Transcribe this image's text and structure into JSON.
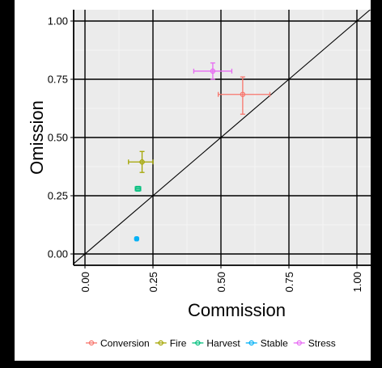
{
  "chart_data": {
    "type": "scatter",
    "title": "",
    "xlabel": "Commission",
    "ylabel": "Omission",
    "xlim": [
      0,
      1
    ],
    "ylim": [
      0,
      1
    ],
    "x_ticks": [
      "0.00",
      "0.25",
      "0.50",
      "0.75",
      "1.00"
    ],
    "y_ticks": [
      "0.00",
      "0.25",
      "0.50",
      "0.75",
      "1.00"
    ],
    "grid": true,
    "reference_line": "y = x",
    "legend_position": "bottom",
    "series": [
      {
        "name": "Conversion",
        "color": "#f8766d",
        "x": 0.58,
        "y": 0.685,
        "x_err": [
          0.49,
          0.68
        ],
        "y_err": [
          0.6,
          0.76
        ]
      },
      {
        "name": "Fire",
        "color": "#a3a500",
        "x": 0.21,
        "y": 0.395,
        "x_err": [
          0.16,
          0.25
        ],
        "y_err": [
          0.35,
          0.44
        ]
      },
      {
        "name": "Harvest",
        "color": "#00bf7d",
        "x": 0.195,
        "y": 0.28,
        "x_err": [
          0.185,
          0.205
        ],
        "y_err": [
          0.27,
          0.29
        ]
      },
      {
        "name": "Stable",
        "color": "#00b0f6",
        "x": 0.19,
        "y": 0.065,
        "x_err": [
          0.185,
          0.195
        ],
        "y_err": [
          0.06,
          0.07
        ]
      },
      {
        "name": "Stress",
        "color": "#e76bf3",
        "x": 0.47,
        "y": 0.785,
        "x_err": [
          0.4,
          0.54
        ],
        "y_err": [
          0.75,
          0.82
        ]
      }
    ]
  }
}
